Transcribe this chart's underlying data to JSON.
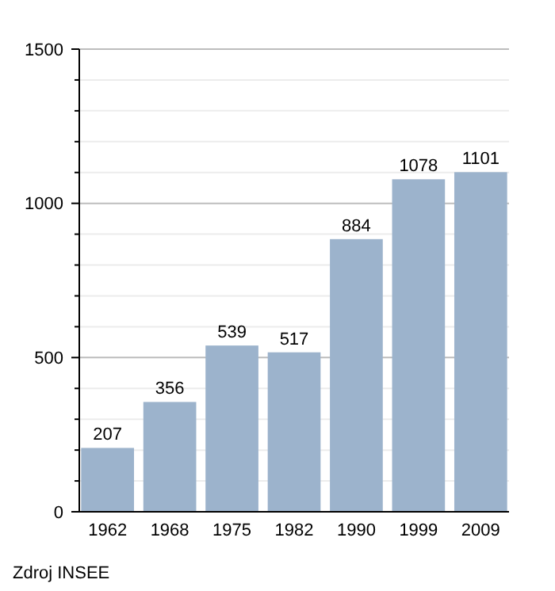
{
  "chart_data": {
    "type": "bar",
    "categories": [
      "1962",
      "1968",
      "1975",
      "1982",
      "1990",
      "1999",
      "2009"
    ],
    "values": [
      207,
      356,
      539,
      517,
      884,
      1078,
      1101
    ],
    "color": "#9cb3cc",
    "ylim": [
      0,
      1500
    ],
    "yticks": [
      0,
      {
        "value": 100,
        "label": null
      },
      {
        "value": 200,
        "label": null
      },
      {
        "value": 300,
        "label": null
      },
      {
        "value": 400,
        "label": null
      },
      500,
      {
        "value": 600,
        "label": null
      },
      {
        "value": 700,
        "label": null
      },
      {
        "value": 800,
        "label": null
      },
      {
        "value": 900,
        "label": null
      },
      1000,
      {
        "value": 1100,
        "label": null
      },
      {
        "value": 1200,
        "label": null
      },
      {
        "value": 1300,
        "label": null
      },
      {
        "value": 1400,
        "label": null
      },
      1500
    ],
    "grid": true,
    "data_labels": true,
    "annotations": [
      "Zdroj INSEE"
    ]
  }
}
